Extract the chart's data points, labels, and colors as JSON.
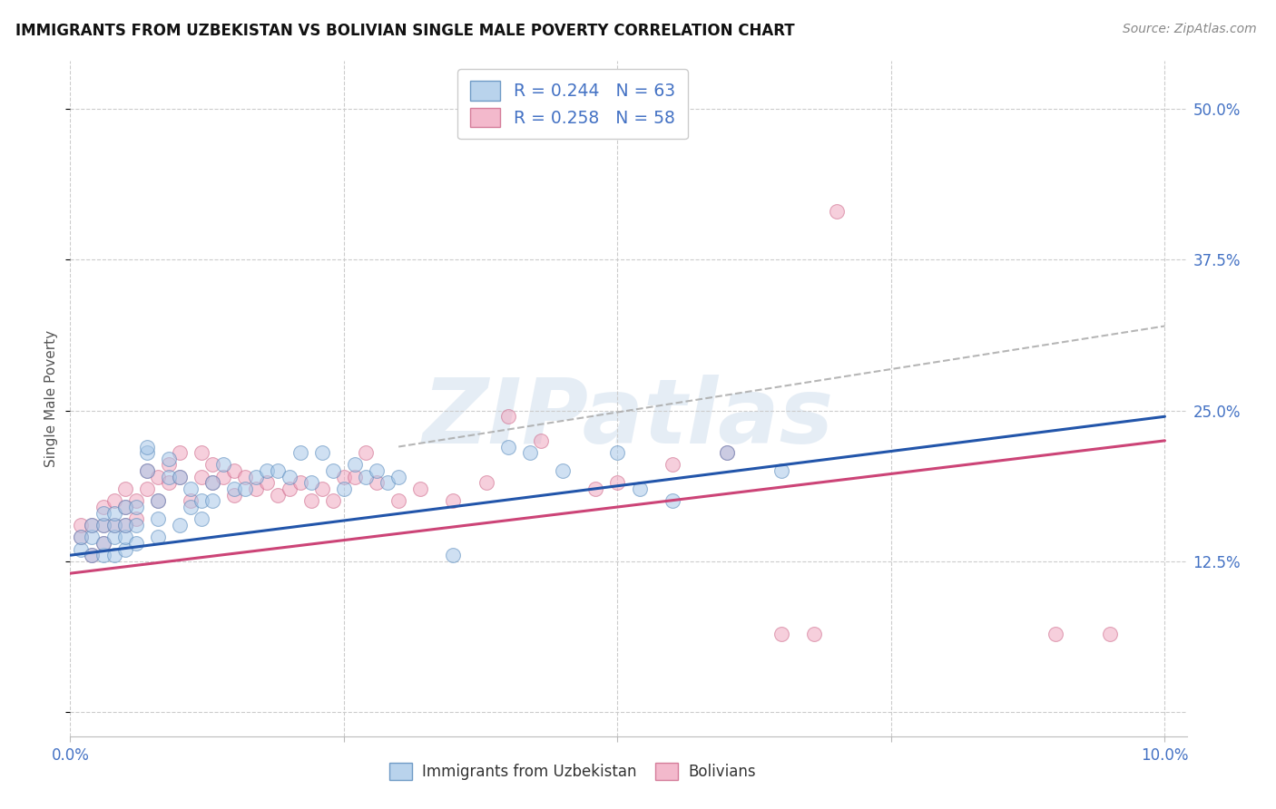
{
  "title": "IMMIGRANTS FROM UZBEKISTAN VS BOLIVIAN SINGLE MALE POVERTY CORRELATION CHART",
  "source": "Source: ZipAtlas.com",
  "ylabel": "Single Male Poverty",
  "legend_line1": "R = 0.244   N = 63",
  "legend_line2": "R = 0.258   N = 58",
  "blue_color": "#a8c8e8",
  "blue_edge_color": "#5588bb",
  "pink_color": "#f0a8c0",
  "pink_edge_color": "#cc6688",
  "blue_line_color": "#2255aa",
  "pink_line_color": "#cc4477",
  "dashed_line_color": "#aaaaaa",
  "tick_label_color": "#4472c4",
  "xlim": [
    0.0,
    0.102
  ],
  "ylim": [
    -0.02,
    0.54
  ],
  "ytick_vals": [
    0.0,
    0.125,
    0.25,
    0.375,
    0.5
  ],
  "ytick_labels": [
    "",
    "12.5%",
    "25.0%",
    "37.5%",
    "50.0%"
  ],
  "xtick_vals": [
    0.0,
    0.025,
    0.05,
    0.075,
    0.1
  ],
  "xtick_labels": [
    "0.0%",
    "",
    "",
    "",
    "10.0%"
  ],
  "blue_x": [
    0.001,
    0.001,
    0.002,
    0.002,
    0.002,
    0.003,
    0.003,
    0.003,
    0.003,
    0.004,
    0.004,
    0.004,
    0.004,
    0.005,
    0.005,
    0.005,
    0.005,
    0.006,
    0.006,
    0.006,
    0.007,
    0.007,
    0.007,
    0.008,
    0.008,
    0.008,
    0.009,
    0.009,
    0.01,
    0.01,
    0.011,
    0.011,
    0.012,
    0.012,
    0.013,
    0.013,
    0.014,
    0.015,
    0.016,
    0.017,
    0.018,
    0.019,
    0.02,
    0.021,
    0.022,
    0.023,
    0.024,
    0.025,
    0.026,
    0.027,
    0.028,
    0.029,
    0.03,
    0.035,
    0.04,
    0.042,
    0.045,
    0.048,
    0.05,
    0.052,
    0.055,
    0.06,
    0.065
  ],
  "blue_y": [
    0.135,
    0.145,
    0.13,
    0.145,
    0.155,
    0.13,
    0.14,
    0.155,
    0.165,
    0.13,
    0.145,
    0.155,
    0.165,
    0.135,
    0.145,
    0.155,
    0.17,
    0.14,
    0.155,
    0.17,
    0.2,
    0.215,
    0.22,
    0.145,
    0.16,
    0.175,
    0.195,
    0.21,
    0.155,
    0.195,
    0.17,
    0.185,
    0.16,
    0.175,
    0.175,
    0.19,
    0.205,
    0.185,
    0.185,
    0.195,
    0.2,
    0.2,
    0.195,
    0.215,
    0.19,
    0.215,
    0.2,
    0.185,
    0.205,
    0.195,
    0.2,
    0.19,
    0.195,
    0.13,
    0.22,
    0.215,
    0.2,
    0.49,
    0.215,
    0.185,
    0.175,
    0.215,
    0.2
  ],
  "pink_x": [
    0.001,
    0.001,
    0.002,
    0.002,
    0.003,
    0.003,
    0.003,
    0.004,
    0.004,
    0.005,
    0.005,
    0.005,
    0.006,
    0.006,
    0.007,
    0.007,
    0.008,
    0.008,
    0.009,
    0.009,
    0.01,
    0.01,
    0.011,
    0.012,
    0.012,
    0.013,
    0.013,
    0.014,
    0.015,
    0.015,
    0.016,
    0.017,
    0.018,
    0.019,
    0.02,
    0.021,
    0.022,
    0.023,
    0.024,
    0.025,
    0.026,
    0.027,
    0.028,
    0.03,
    0.032,
    0.035,
    0.038,
    0.04,
    0.043,
    0.048,
    0.05,
    0.055,
    0.06,
    0.065,
    0.068,
    0.07,
    0.09,
    0.095
  ],
  "pink_y": [
    0.145,
    0.155,
    0.13,
    0.155,
    0.14,
    0.155,
    0.17,
    0.155,
    0.175,
    0.155,
    0.17,
    0.185,
    0.16,
    0.175,
    0.185,
    0.2,
    0.175,
    0.195,
    0.19,
    0.205,
    0.195,
    0.215,
    0.175,
    0.195,
    0.215,
    0.19,
    0.205,
    0.195,
    0.18,
    0.2,
    0.195,
    0.185,
    0.19,
    0.18,
    0.185,
    0.19,
    0.175,
    0.185,
    0.175,
    0.195,
    0.195,
    0.215,
    0.19,
    0.175,
    0.185,
    0.175,
    0.19,
    0.245,
    0.225,
    0.185,
    0.19,
    0.205,
    0.215,
    0.065,
    0.065,
    0.415,
    0.065,
    0.065
  ],
  "blue_trend_x": [
    0.0,
    0.1
  ],
  "blue_trend_y": [
    0.13,
    0.245
  ],
  "pink_trend_x": [
    0.0,
    0.1
  ],
  "pink_trend_y": [
    0.115,
    0.225
  ],
  "dash_trend_x": [
    0.03,
    0.1
  ],
  "dash_trend_y": [
    0.22,
    0.32
  ]
}
